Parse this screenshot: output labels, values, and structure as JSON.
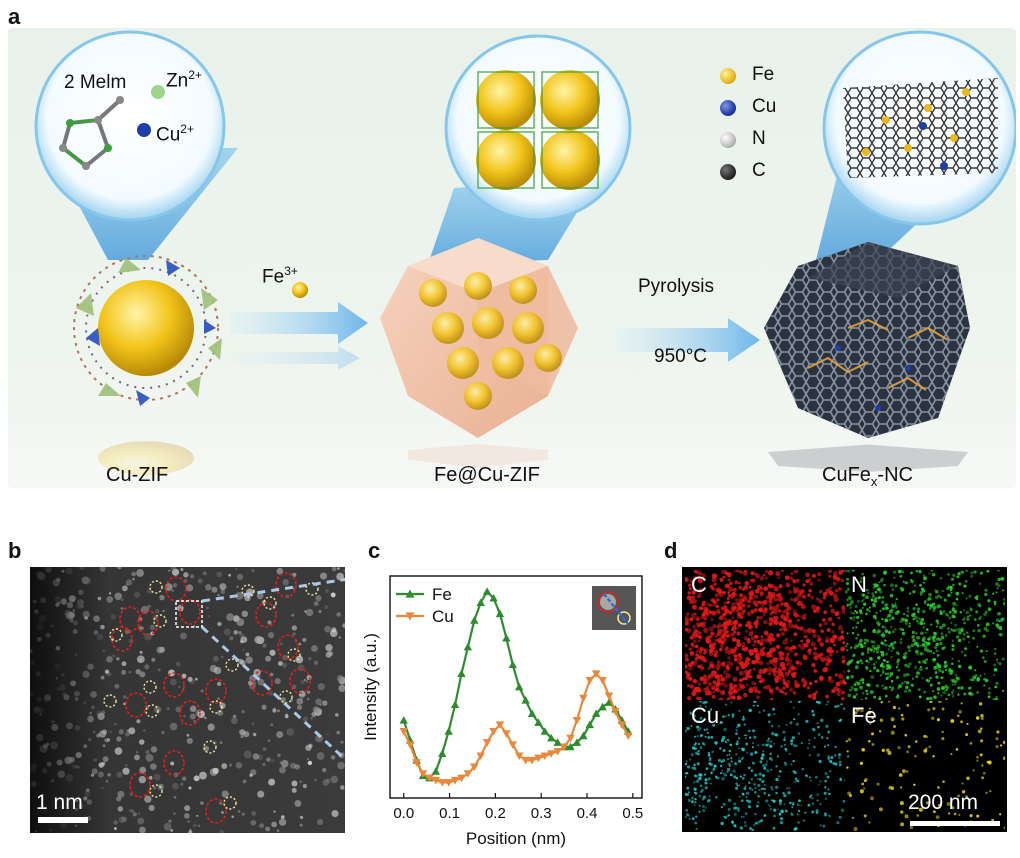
{
  "panels": {
    "a": {
      "letter": "a"
    },
    "b": {
      "letter": "b",
      "scale_bar": "1 nm"
    },
    "c": {
      "letter": "c"
    },
    "d": {
      "letter": "d",
      "scale_bar": "200 nm"
    }
  },
  "scheme": {
    "ligand_label": "2 Melm",
    "zn_label": "Zn",
    "zn_sup": "2+",
    "cu_label": "Cu",
    "cu_sup": "2+",
    "fe_label": "Fe",
    "fe_sup": "3+",
    "pyrolysis_label": "Pyrolysis",
    "temperature_label": "950°C",
    "stage1_caption": "Cu-ZIF",
    "stage2_caption": "Fe@Cu-ZIF",
    "stage3_caption_main": "CuFe",
    "stage3_caption_sub": "x",
    "stage3_caption_end": "-NC",
    "element_legend": [
      {
        "label": "Fe",
        "color": "#e8b81c"
      },
      {
        "label": "Cu",
        "color": "#1f3fa8"
      },
      {
        "label": "N",
        "color": "#bcbcbc"
      },
      {
        "label": "C",
        "color": "#2b2b2b"
      }
    ]
  },
  "eds_maps": [
    {
      "label": "C",
      "color": "#e01818"
    },
    {
      "label": "N",
      "color": "#2ecc2e"
    },
    {
      "label": "Cu",
      "color": "#22c6c6"
    },
    {
      "label": "Fe",
      "color": "#e6d21a"
    }
  ],
  "chart_data": {
    "type": "line",
    "title": "",
    "xlabel": "Position (nm)",
    "ylabel": "Intensity (a.u.)",
    "xlim": [
      -0.03,
      0.52
    ],
    "ylim": [
      0,
      1
    ],
    "xticks": [
      "0.0",
      "0.1",
      "0.2",
      "0.3",
      "0.4",
      "0.5"
    ],
    "legend": "top-left",
    "series": [
      {
        "name": "Fe",
        "color": "#2e8b2e",
        "marker": "triangle-up",
        "x": [
          0.0,
          0.014,
          0.028,
          0.042,
          0.056,
          0.07,
          0.084,
          0.098,
          0.112,
          0.126,
          0.14,
          0.154,
          0.168,
          0.182,
          0.196,
          0.21,
          0.224,
          0.238,
          0.252,
          0.266,
          0.28,
          0.294,
          0.308,
          0.322,
          0.336,
          0.35,
          0.364,
          0.378,
          0.392,
          0.406,
          0.42,
          0.434,
          0.448,
          0.462,
          0.476,
          0.49
        ],
        "y": [
          0.35,
          0.26,
          0.17,
          0.1,
          0.09,
          0.12,
          0.2,
          0.3,
          0.42,
          0.56,
          0.68,
          0.8,
          0.88,
          0.93,
          0.9,
          0.83,
          0.72,
          0.6,
          0.5,
          0.44,
          0.38,
          0.34,
          0.3,
          0.27,
          0.25,
          0.23,
          0.23,
          0.25,
          0.28,
          0.33,
          0.38,
          0.41,
          0.43,
          0.4,
          0.35,
          0.3
        ]
      },
      {
        "name": "Cu",
        "color": "#e8883a",
        "marker": "triangle-down",
        "x": [
          0.0,
          0.014,
          0.028,
          0.042,
          0.056,
          0.07,
          0.084,
          0.098,
          0.112,
          0.126,
          0.14,
          0.154,
          0.168,
          0.182,
          0.196,
          0.21,
          0.224,
          0.238,
          0.252,
          0.266,
          0.28,
          0.294,
          0.308,
          0.322,
          0.336,
          0.35,
          0.364,
          0.378,
          0.392,
          0.406,
          0.42,
          0.434,
          0.448,
          0.462,
          0.476,
          0.49
        ],
        "y": [
          0.3,
          0.24,
          0.16,
          0.11,
          0.09,
          0.08,
          0.07,
          0.07,
          0.08,
          0.09,
          0.11,
          0.14,
          0.19,
          0.25,
          0.3,
          0.33,
          0.29,
          0.24,
          0.19,
          0.17,
          0.17,
          0.18,
          0.19,
          0.2,
          0.21,
          0.23,
          0.27,
          0.35,
          0.45,
          0.53,
          0.56,
          0.53,
          0.46,
          0.39,
          0.33,
          0.28
        ]
      }
    ]
  }
}
